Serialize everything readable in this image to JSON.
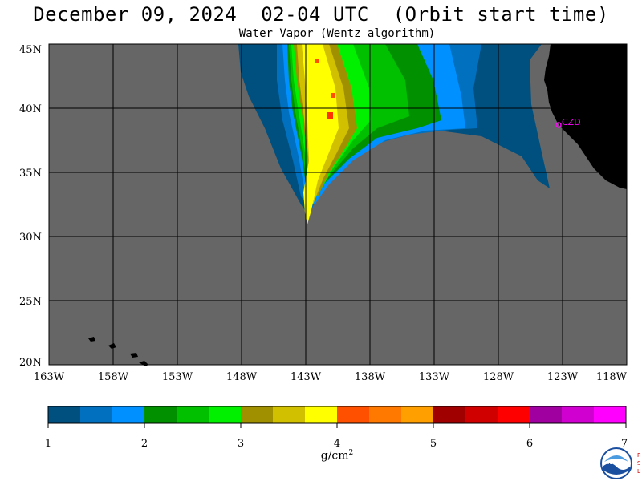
{
  "title": "December 09, 2024  02-04 UTC  (Orbit start time)",
  "subtitle": "Water Vapor (Wentz algorithm)",
  "colors": {
    "land_mask": "#666666",
    "land": "#000000",
    "station_marker": "#ff00ff",
    "max_marker": "#ff3300"
  },
  "station": {
    "label": "CZD"
  },
  "axes": {
    "lat_labels": [
      "45N",
      "40N",
      "35N",
      "30N",
      "25N",
      "20N"
    ],
    "lon_labels": [
      "163W",
      "158W",
      "153W",
      "148W",
      "143W",
      "138W",
      "133W",
      "128W",
      "123W",
      "118W"
    ]
  },
  "colorbar": {
    "colors": [
      "#00507f",
      "#0070bf",
      "#0090ff",
      "#009000",
      "#00c000",
      "#00f000",
      "#a09000",
      "#d0c000",
      "#ffff00",
      "#ff5000",
      "#ff7800",
      "#ffa000",
      "#a00000",
      "#d00000",
      "#ff0000",
      "#a000a0",
      "#d000d0",
      "#ff00ff"
    ],
    "tick_labels": [
      "1",
      "2",
      "3",
      "4",
      "5",
      "6",
      "7"
    ],
    "unit": "g/cm",
    "unit_sup": "2"
  },
  "logo": {
    "label": "NOAA",
    "side_letters": [
      "P",
      "S",
      "L"
    ]
  }
}
